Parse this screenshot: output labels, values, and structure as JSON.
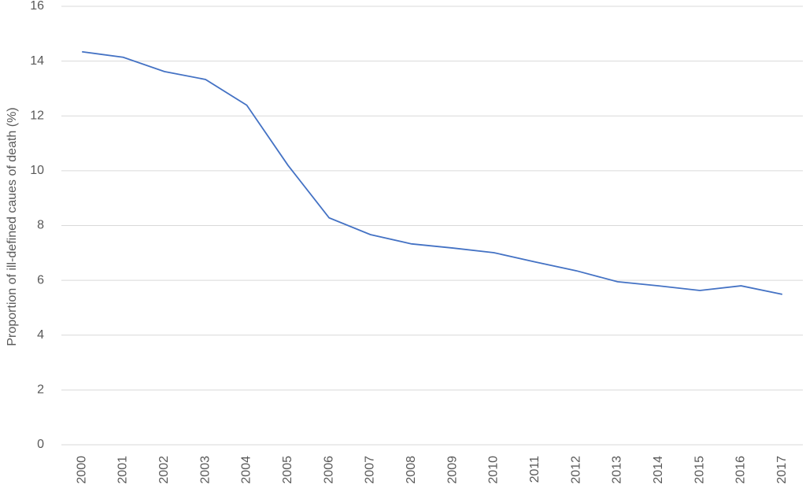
{
  "chart_data": {
    "type": "line",
    "y_label": "Proportion of ill-defined caues of death (%)",
    "categories": [
      "2000",
      "2001",
      "2002",
      "2003",
      "2004",
      "2005",
      "2006",
      "2007",
      "2008",
      "2009",
      "2010",
      "2011",
      "2012",
      "2013",
      "2014",
      "2015",
      "2016",
      "2017"
    ],
    "values": [
      14.34,
      14.14,
      13.62,
      13.33,
      12.39,
      10.2,
      8.28,
      7.67,
      7.33,
      7.18,
      7.01,
      6.67,
      6.35,
      5.95,
      5.8,
      5.63,
      5.8,
      5.49
    ],
    "color": "#4472c4",
    "ylim": [
      0,
      16
    ],
    "yticks": [
      0,
      2,
      4,
      6,
      8,
      10,
      12,
      14,
      16
    ],
    "grid": true
  }
}
